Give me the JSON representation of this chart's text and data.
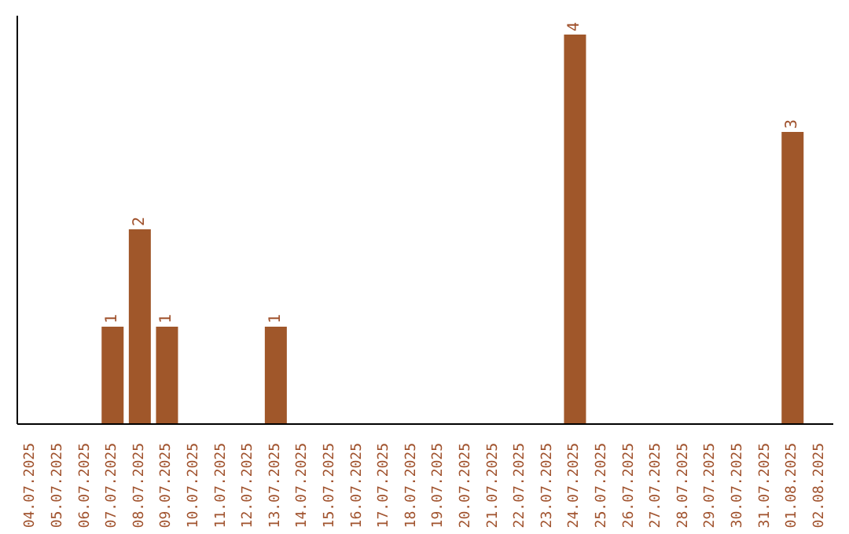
{
  "chart_data": {
    "type": "bar",
    "categories": [
      "04.07.2025",
      "05.07.2025",
      "06.07.2025",
      "07.07.2025",
      "08.07.2025",
      "09.07.2025",
      "10.07.2025",
      "11.07.2025",
      "12.07.2025",
      "13.07.2025",
      "14.07.2025",
      "15.07.2025",
      "16.07.2025",
      "17.07.2025",
      "18.07.2025",
      "19.07.2025",
      "20.07.2025",
      "21.07.2025",
      "22.07.2025",
      "23.07.2025",
      "24.07.2025",
      "25.07.2025",
      "26.07.2025",
      "27.07.2025",
      "28.07.2025",
      "29.07.2025",
      "30.07.2025",
      "31.07.2025",
      "01.08.2025",
      "02.08.2025"
    ],
    "values": [
      0,
      0,
      0,
      1,
      2,
      1,
      0,
      0,
      0,
      1,
      0,
      0,
      0,
      0,
      0,
      0,
      0,
      0,
      0,
      0,
      4,
      0,
      0,
      0,
      0,
      0,
      0,
      0,
      3,
      0
    ],
    "value_labels": [
      null,
      null,
      null,
      "1",
      "2",
      "1",
      null,
      null,
      null,
      "1",
      null,
      null,
      null,
      null,
      null,
      null,
      null,
      null,
      null,
      null,
      "4",
      null,
      null,
      null,
      null,
      null,
      null,
      null,
      "3",
      null
    ],
    "color": "#a0572a",
    "tick_labels": "x"
  }
}
